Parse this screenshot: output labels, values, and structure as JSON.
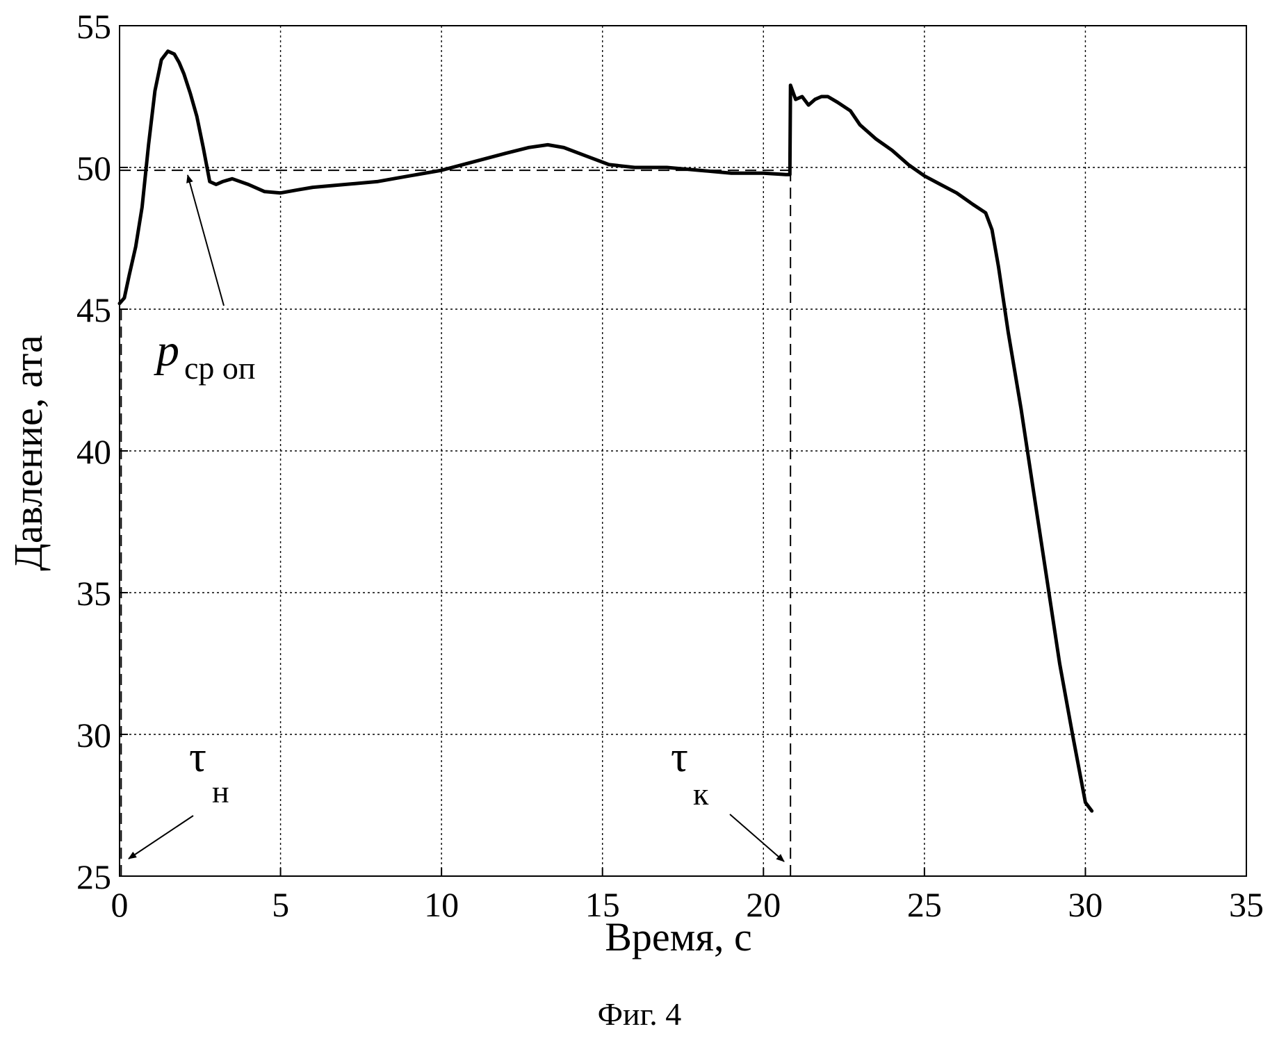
{
  "chart_data": {
    "type": "line",
    "title": "",
    "xlabel": "Время, с",
    "ylabel": "Давление, ата",
    "caption": "Фиг. 4",
    "xlim": [
      0,
      35
    ],
    "ylim": [
      25,
      55
    ],
    "xticks": [
      "0",
      "5",
      "10",
      "15",
      "20",
      "25",
      "30",
      "35"
    ],
    "yticks": [
      "25",
      "30",
      "35",
      "40",
      "45",
      "50",
      "55"
    ],
    "grid": true,
    "grid_style": "dotted",
    "line_color": "#000000",
    "series": [
      {
        "x": [
          0,
          0.15,
          0.3,
          0.5,
          0.7,
          0.9,
          1.1,
          1.3,
          1.5,
          1.7,
          1.85,
          2.0,
          2.2,
          2.4,
          2.6,
          2.8,
          3.0,
          3.2,
          3.5,
          4.0,
          4.5,
          5.0,
          5.5,
          6.0,
          7.0,
          8.0,
          9.0,
          10.0,
          11.0,
          12.0,
          12.7,
          13.3,
          13.8,
          14.5,
          15.2,
          16.0,
          17.0,
          18.0,
          19.0,
          20.0,
          20.7,
          20.82,
          20.84,
          21.0,
          21.2,
          21.4,
          21.6,
          21.8,
          22.0,
          22.3,
          22.7,
          23.0,
          23.5,
          24.0,
          24.5,
          25.0,
          25.5,
          26.0,
          26.5,
          26.9,
          27.1,
          27.3,
          27.6,
          28.0,
          28.4,
          28.8,
          29.2,
          29.6,
          30.0,
          30.2
        ],
        "y": [
          45.2,
          45.4,
          46.2,
          47.2,
          48.6,
          50.8,
          52.7,
          53.8,
          54.1,
          54.0,
          53.7,
          53.3,
          52.6,
          51.8,
          50.7,
          49.5,
          49.4,
          49.5,
          49.6,
          49.4,
          49.15,
          49.1,
          49.2,
          49.3,
          49.4,
          49.5,
          49.7,
          49.9,
          50.2,
          50.5,
          50.7,
          50.8,
          50.7,
          50.4,
          50.1,
          50.0,
          50.0,
          49.9,
          49.8,
          49.8,
          49.75,
          49.75,
          52.9,
          52.4,
          52.5,
          52.2,
          52.4,
          52.5,
          52.5,
          52.3,
          52.0,
          51.5,
          51.0,
          50.6,
          50.1,
          49.7,
          49.4,
          49.1,
          48.7,
          48.4,
          47.8,
          46.5,
          44.2,
          41.5,
          38.5,
          35.5,
          32.5,
          30.0,
          27.6,
          27.3
        ]
      }
    ],
    "reference_lines": [
      {
        "orientation": "horizontal",
        "y": 49.9,
        "style": "dashed"
      },
      {
        "orientation": "vertical",
        "x": 0.05,
        "style": "dashed"
      },
      {
        "orientation": "vertical",
        "x": 20.84,
        "style": "dashed"
      }
    ],
    "annotations": {
      "p_main": "p",
      "p_sub": "ср оп",
      "tau_n_main": "τ",
      "tau_n_sub": "н",
      "tau_k_main": "τ",
      "tau_k_sub": "к"
    }
  }
}
